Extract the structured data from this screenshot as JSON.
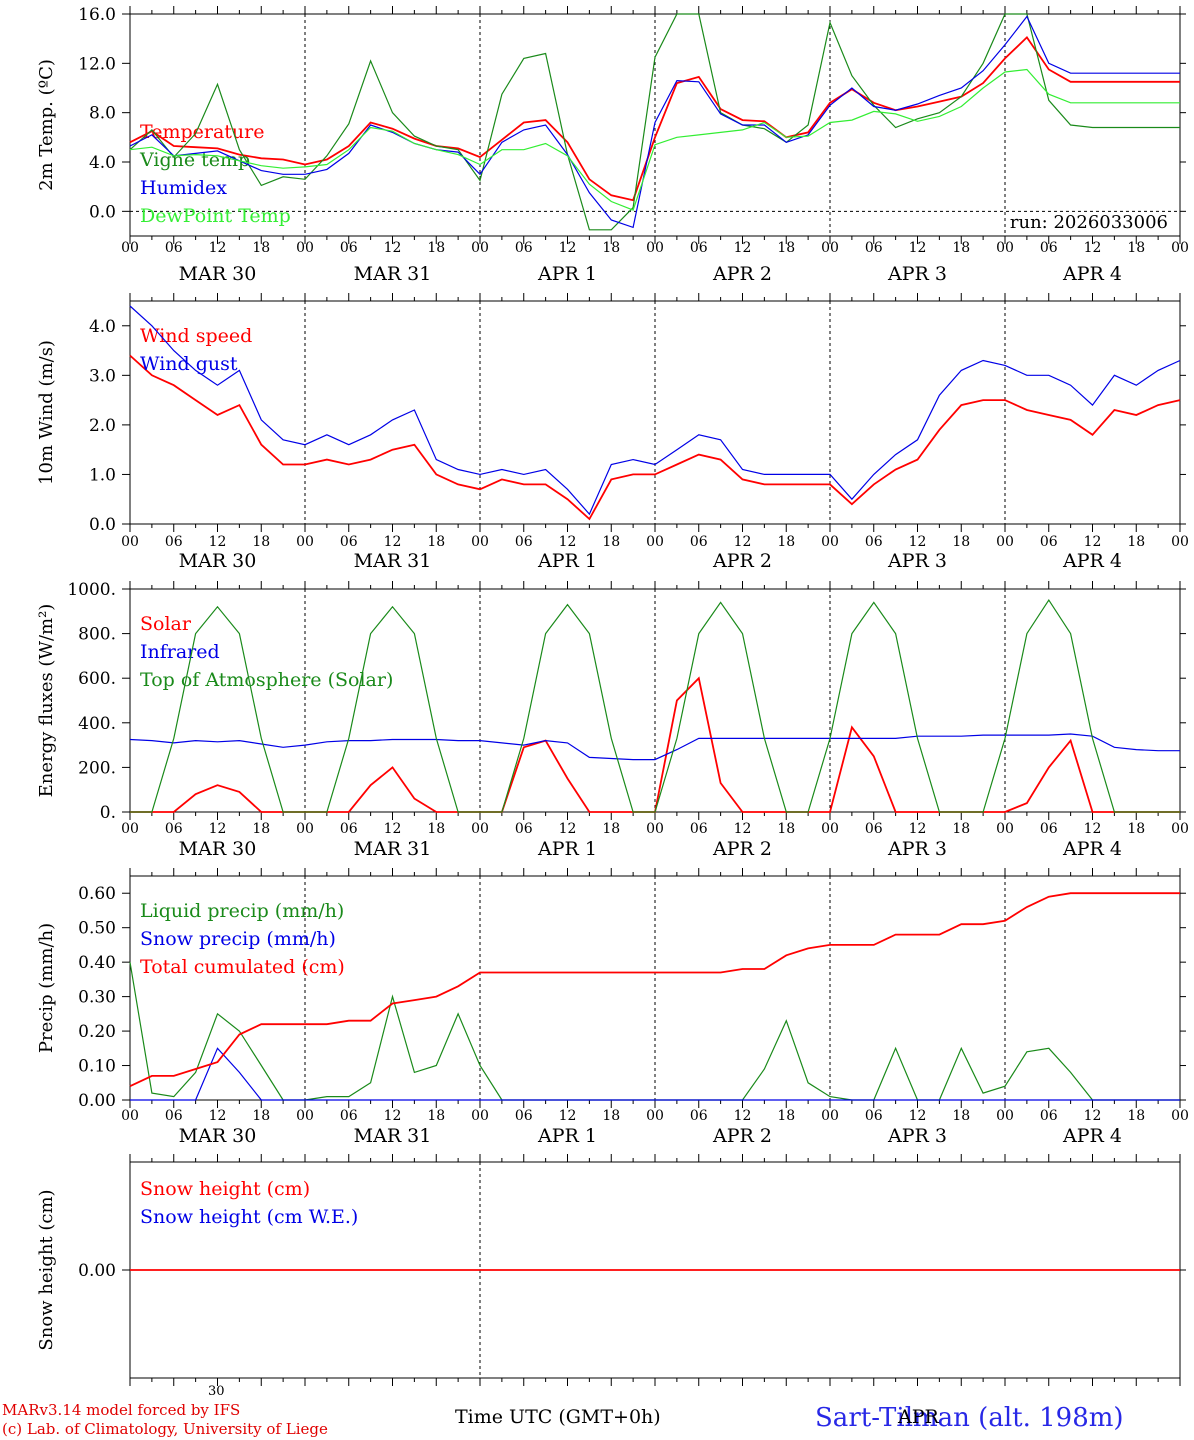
{
  "footer": {
    "credit_line1": "MARv3.14 model forced by IFS",
    "credit_line2": "(c) Lab. of Climatology, University of Liege",
    "xlabel": "Time UTC (GMT+0h)",
    "station": "Sart-Tilman (alt. 198m)",
    "stray_day": "30",
    "stray_month": "APR"
  },
  "chart_data": [
    {
      "type": "line",
      "ylabel": "2m Temp. (ºC)",
      "ylim": [
        -2,
        16
      ],
      "yticks": [
        "0.0",
        "4.0",
        "8.0",
        "12.0",
        "16.0"
      ],
      "yticks_values": [
        0,
        4,
        8,
        12,
        16
      ],
      "zero_line": 0,
      "run_label": "run: 2026033006",
      "hour_ticks": [
        "00",
        "06",
        "12",
        "18"
      ],
      "day_labels": [
        "MAR 30",
        "MAR 31",
        "APR  1",
        "APR  2",
        "APR  3",
        "APR  4"
      ],
      "x_hours": [
        0,
        3,
        6,
        9,
        12,
        15,
        18,
        21,
        24,
        27,
        30,
        33,
        36,
        39,
        42,
        45,
        48,
        51,
        54,
        57,
        60,
        63,
        66,
        69,
        72,
        75,
        78,
        81,
        84,
        87,
        90,
        93,
        96,
        99,
        102,
        105,
        108,
        111,
        114,
        117,
        120,
        123,
        126,
        129,
        132,
        135,
        138,
        141,
        144
      ],
      "series": [
        {
          "name": "Temperature",
          "color": "#ff0000",
          "values": [
            5.6,
            6.5,
            5.3,
            5.2,
            5.1,
            4.6,
            4.3,
            4.2,
            3.8,
            4.2,
            5.3,
            7.2,
            6.7,
            5.9,
            5.3,
            5.1,
            4.4,
            5.8,
            7.2,
            7.4,
            5.6,
            2.6,
            1.3,
            0.9,
            6.0,
            10.4,
            10.9,
            8.3,
            7.4,
            7.3,
            6.0,
            6.4,
            8.8,
            9.9,
            8.8,
            8.2,
            8.5,
            8.9,
            9.3,
            10.4,
            12.4,
            14.1,
            11.5,
            10.5,
            10.5,
            10.5,
            10.5,
            10.5,
            10.5
          ]
        },
        {
          "name": "Vigne temp",
          "color": "#1a8a1a",
          "values": [
            5.0,
            6.6,
            4.4,
            6.3,
            10.3,
            5.0,
            2.1,
            2.8,
            2.6,
            4.5,
            7.1,
            12.2,
            8.0,
            6.1,
            5.3,
            5.0,
            2.5,
            9.5,
            12.4,
            12.8,
            4.6,
            -1.5,
            -1.5,
            0.3,
            12.5,
            16.0,
            16.0,
            8.0,
            7.0,
            6.7,
            5.6,
            7.0,
            15.3,
            11.0,
            8.6,
            6.8,
            7.5,
            8.0,
            9.3,
            12.0,
            16.0,
            16.0,
            9.0,
            7.0,
            6.8,
            6.8,
            6.8,
            6.8,
            6.8
          ]
        },
        {
          "name": "Humidex",
          "color": "#0000e6",
          "values": [
            5.3,
            6.2,
            4.5,
            4.7,
            4.9,
            4.1,
            3.3,
            3.0,
            3.0,
            3.4,
            4.7,
            7.0,
            6.4,
            5.5,
            5.0,
            4.8,
            3.0,
            5.6,
            6.6,
            7.0,
            4.6,
            1.5,
            -0.7,
            -1.3,
            7.2,
            10.6,
            10.5,
            7.9,
            7.0,
            7.0,
            5.6,
            6.2,
            8.6,
            10.0,
            8.5,
            8.2,
            8.7,
            9.4,
            10.0,
            11.4,
            13.5,
            15.8,
            12.0,
            11.2,
            11.2,
            11.2,
            11.2,
            11.2,
            11.2
          ]
        },
        {
          "name": "DewPoint Temp",
          "color": "#33ee33",
          "values": [
            5.0,
            5.2,
            4.5,
            4.6,
            4.5,
            4.1,
            3.7,
            3.5,
            3.6,
            3.8,
            5.0,
            6.8,
            6.5,
            5.5,
            5.0,
            4.6,
            3.8,
            5.0,
            5.0,
            5.5,
            4.5,
            2.2,
            0.8,
            0.1,
            5.4,
            6.0,
            6.2,
            6.4,
            6.6,
            7.2,
            6.0,
            6.1,
            7.2,
            7.4,
            8.1,
            7.9,
            7.3,
            7.7,
            8.5,
            10.0,
            11.3,
            11.5,
            9.5,
            8.8,
            8.8,
            8.8,
            8.8,
            8.8,
            8.8
          ]
        }
      ]
    },
    {
      "type": "line",
      "ylabel": "10m Wind (m/s)",
      "ylim": [
        0,
        4.5
      ],
      "yticks": [
        "0.0",
        "1.0",
        "2.0",
        "3.0",
        "4.0"
      ],
      "yticks_values": [
        0,
        1,
        2,
        3,
        4
      ],
      "hour_ticks": [
        "00",
        "06",
        "12",
        "18"
      ],
      "day_labels": [
        "MAR 30",
        "MAR 31",
        "APR  1",
        "APR  2",
        "APR  3",
        "APR  4"
      ],
      "x_hours": [
        0,
        3,
        6,
        9,
        12,
        15,
        18,
        21,
        24,
        27,
        30,
        33,
        36,
        39,
        42,
        45,
        48,
        51,
        54,
        57,
        60,
        63,
        66,
        69,
        72,
        75,
        78,
        81,
        84,
        87,
        90,
        93,
        96,
        99,
        102,
        105,
        108,
        111,
        114,
        117,
        120,
        123,
        126,
        129,
        132,
        135,
        138,
        141,
        144
      ],
      "series": [
        {
          "name": "Wind speed",
          "color": "#ff0000",
          "values": [
            3.4,
            3.0,
            2.8,
            2.5,
            2.2,
            2.4,
            1.6,
            1.2,
            1.2,
            1.3,
            1.2,
            1.3,
            1.5,
            1.6,
            1.0,
            0.8,
            0.7,
            0.9,
            0.8,
            0.8,
            0.5,
            0.1,
            0.9,
            1.0,
            1.0,
            1.2,
            1.4,
            1.3,
            0.9,
            0.8,
            0.8,
            0.8,
            0.8,
            0.4,
            0.8,
            1.1,
            1.3,
            1.9,
            2.4,
            2.5,
            2.5,
            2.3,
            2.2,
            2.1,
            1.8,
            2.3,
            2.2,
            2.4,
            2.5
          ]
        },
        {
          "name": "Wind gust",
          "color": "#0000e6",
          "values": [
            4.4,
            4.0,
            3.5,
            3.1,
            2.8,
            3.1,
            2.1,
            1.7,
            1.6,
            1.8,
            1.6,
            1.8,
            2.1,
            2.3,
            1.3,
            1.1,
            1.0,
            1.1,
            1.0,
            1.1,
            0.7,
            0.2,
            1.2,
            1.3,
            1.2,
            1.5,
            1.8,
            1.7,
            1.1,
            1.0,
            1.0,
            1.0,
            1.0,
            0.5,
            1.0,
            1.4,
            1.7,
            2.6,
            3.1,
            3.3,
            3.2,
            3.0,
            3.0,
            2.8,
            2.4,
            3.0,
            2.8,
            3.1,
            3.3
          ]
        }
      ]
    },
    {
      "type": "line",
      "ylabel": "Energy fluxes (W/m²)",
      "ylim": [
        0,
        1000
      ],
      "yticks": [
        "0.",
        "200.",
        "400.",
        "600.",
        "800.",
        "1000."
      ],
      "yticks_values": [
        0,
        200,
        400,
        600,
        800,
        1000
      ],
      "hour_ticks": [
        "00",
        "06",
        "12",
        "18"
      ],
      "day_labels": [
        "MAR 30",
        "MAR 31",
        "APR  1",
        "APR  2",
        "APR  3",
        "APR  4"
      ],
      "x_hours": [
        0,
        3,
        6,
        9,
        12,
        15,
        18,
        21,
        24,
        27,
        30,
        33,
        36,
        39,
        42,
        45,
        48,
        51,
        54,
        57,
        60,
        63,
        66,
        69,
        72,
        75,
        78,
        81,
        84,
        87,
        90,
        93,
        96,
        99,
        102,
        105,
        108,
        111,
        114,
        117,
        120,
        123,
        126,
        129,
        132,
        135,
        138,
        141,
        144
      ],
      "series": [
        {
          "name": "Solar",
          "color": "#ff0000",
          "values": [
            0,
            0,
            0,
            80,
            120,
            90,
            0,
            0,
            0,
            0,
            0,
            120,
            200,
            60,
            0,
            0,
            0,
            0,
            290,
            320,
            150,
            0,
            0,
            0,
            0,
            500,
            600,
            130,
            0,
            0,
            0,
            0,
            0,
            380,
            250,
            0,
            0,
            0,
            0,
            0,
            0,
            40,
            200,
            320,
            0,
            0,
            0,
            0,
            0
          ]
        },
        {
          "name": "Infrared",
          "color": "#0000e6",
          "values": [
            325,
            320,
            310,
            320,
            315,
            320,
            305,
            290,
            300,
            315,
            320,
            320,
            325,
            325,
            325,
            320,
            320,
            310,
            300,
            320,
            310,
            245,
            240,
            235,
            235,
            280,
            330,
            330,
            330,
            330,
            330,
            330,
            330,
            330,
            330,
            330,
            340,
            340,
            340,
            345,
            345,
            345,
            345,
            350,
            340,
            290,
            280,
            275,
            275
          ]
        },
        {
          "name": "Top of Atmosphere (Solar)",
          "color": "#1a8a1a",
          "values": [
            0,
            0,
            330,
            800,
            920,
            800,
            330,
            0,
            0,
            0,
            330,
            800,
            920,
            800,
            330,
            0,
            0,
            0,
            330,
            800,
            930,
            800,
            330,
            0,
            0,
            330,
            800,
            940,
            800,
            330,
            0,
            0,
            330,
            800,
            940,
            800,
            330,
            0,
            0,
            0,
            330,
            800,
            950,
            800,
            330,
            0,
            0,
            0,
            0
          ]
        }
      ]
    },
    {
      "type": "line",
      "ylabel": "Precip (mm/h)",
      "ylim": [
        0,
        0.65
      ],
      "yticks": [
        "0.00",
        "0.10",
        "0.20",
        "0.30",
        "0.40",
        "0.50",
        "0.60"
      ],
      "yticks_values": [
        0,
        0.1,
        0.2,
        0.3,
        0.4,
        0.5,
        0.6
      ],
      "hour_ticks": [
        "00",
        "06",
        "12",
        "18"
      ],
      "day_labels": [
        "MAR 30",
        "MAR 31",
        "APR  1",
        "APR  2",
        "APR  3",
        "APR  4"
      ],
      "x_hours": [
        0,
        3,
        6,
        9,
        12,
        15,
        18,
        21,
        24,
        27,
        30,
        33,
        36,
        39,
        42,
        45,
        48,
        51,
        54,
        57,
        60,
        63,
        66,
        69,
        72,
        75,
        78,
        81,
        84,
        87,
        90,
        93,
        96,
        99,
        102,
        105,
        108,
        111,
        114,
        117,
        120,
        123,
        126,
        129,
        132,
        135,
        138,
        141,
        144
      ],
      "series": [
        {
          "name": "Liquid precip (mm/h)",
          "color": "#1a8a1a",
          "values": [
            0.4,
            0.02,
            0.01,
            0.08,
            0.25,
            0.2,
            0.1,
            0.0,
            0.0,
            0.01,
            0.01,
            0.05,
            0.3,
            0.08,
            0.1,
            0.25,
            0.1,
            0.0,
            0.0,
            0.0,
            0.0,
            0.0,
            0.0,
            0.0,
            0.0,
            0.0,
            0.0,
            0.0,
            0.0,
            0.09,
            0.23,
            0.05,
            0.01,
            0.0,
            0.0,
            0.15,
            0.0,
            0.0,
            0.15,
            0.02,
            0.04,
            0.14,
            0.15,
            0.08,
            0.0,
            0.0,
            0.0,
            0.0,
            0.0
          ]
        },
        {
          "name": "Snow precip (mm/h)",
          "color": "#0000e6",
          "values": [
            0,
            0,
            0,
            0,
            0.15,
            0.08,
            0,
            0,
            0,
            0,
            0,
            0,
            0,
            0,
            0,
            0,
            0,
            0,
            0,
            0,
            0,
            0,
            0,
            0,
            0,
            0,
            0,
            0,
            0,
            0,
            0,
            0,
            0,
            0,
            0,
            0,
            0,
            0,
            0,
            0,
            0,
            0,
            0,
            0,
            0,
            0,
            0,
            0,
            0
          ]
        },
        {
          "name": "Total cumulated (cm)",
          "color": "#ff0000",
          "values": [
            0.04,
            0.07,
            0.07,
            0.09,
            0.11,
            0.19,
            0.22,
            0.22,
            0.22,
            0.22,
            0.23,
            0.23,
            0.28,
            0.29,
            0.3,
            0.33,
            0.37,
            0.37,
            0.37,
            0.37,
            0.37,
            0.37,
            0.37,
            0.37,
            0.37,
            0.37,
            0.37,
            0.37,
            0.38,
            0.38,
            0.42,
            0.44,
            0.45,
            0.45,
            0.45,
            0.48,
            0.48,
            0.48,
            0.51,
            0.51,
            0.52,
            0.56,
            0.59,
            0.6,
            0.6,
            0.6,
            0.6,
            0.6,
            0.6
          ]
        }
      ]
    },
    {
      "type": "line",
      "ylabel": "Snow height (cm)",
      "ylim": [
        -1,
        1
      ],
      "yticks": [
        "0.00"
      ],
      "yticks_values": [
        0
      ],
      "series": [
        {
          "name": "Snow height (cm)",
          "color": "#ff0000",
          "values": [
            0,
            0
          ]
        },
        {
          "name": "Snow height (cm W.E.)",
          "color": "#0000e6",
          "values": []
        }
      ],
      "x_hours": [
        0,
        144
      ]
    }
  ]
}
